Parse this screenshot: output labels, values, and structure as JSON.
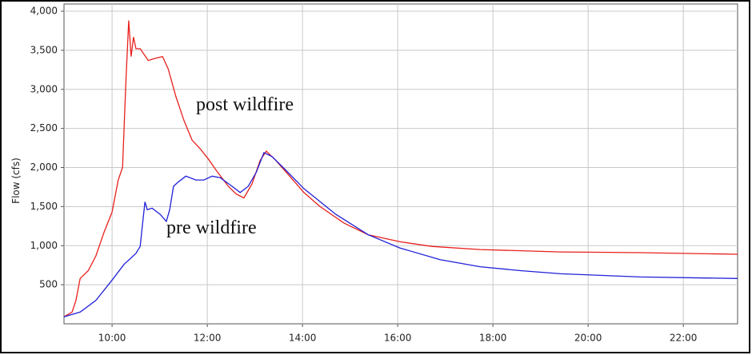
{
  "chart_data": {
    "type": "line",
    "y_label": "Flow (cfs)",
    "xlim": [
      8.99,
      23.14
    ],
    "xticks": [
      {
        "value": 10,
        "label": "10:00"
      },
      {
        "value": 12,
        "label": "12:00"
      },
      {
        "value": 14,
        "label": "14:00"
      },
      {
        "value": 16,
        "label": "16:00"
      },
      {
        "value": 18,
        "label": "18:00"
      },
      {
        "value": 20,
        "label": "20:00"
      },
      {
        "value": 22,
        "label": "22:00"
      }
    ],
    "ylim": [
      0,
      4000
    ],
    "yticks": [
      {
        "value": 500,
        "label": "500"
      },
      {
        "value": 1000,
        "label": "1,000"
      },
      {
        "value": 1500,
        "label": "1,500"
      },
      {
        "value": 2000,
        "label": "2,000"
      },
      {
        "value": 2500,
        "label": "2,500"
      },
      {
        "value": 3000,
        "label": "3,000"
      },
      {
        "value": 3500,
        "label": "3,500"
      },
      {
        "value": 4000,
        "label": "4,000"
      }
    ],
    "grid": true,
    "series": [
      {
        "name": "post wildfire",
        "color": "#e8201c",
        "x": [
          8.99,
          9.16,
          9.24,
          9.33,
          9.5,
          9.66,
          9.83,
          10.0,
          10.13,
          10.22,
          10.29,
          10.35,
          10.4,
          10.45,
          10.5,
          10.59,
          10.76,
          10.92,
          11.06,
          11.18,
          11.34,
          11.51,
          11.68,
          11.85,
          12.02,
          12.18,
          12.44,
          12.61,
          12.77,
          12.94,
          13.11,
          13.24,
          13.44,
          13.7,
          14.03,
          14.37,
          14.87,
          15.38,
          16.05,
          16.72,
          17.73,
          19.42,
          21.1,
          23.14
        ],
        "values": [
          90,
          150,
          300,
          580,
          680,
          870,
          1170,
          1430,
          1840,
          2000,
          3110,
          3880,
          3420,
          3670,
          3520,
          3520,
          3370,
          3400,
          3420,
          3260,
          2910,
          2600,
          2350,
          2240,
          2110,
          1970,
          1760,
          1660,
          1610,
          1790,
          2090,
          2210,
          2090,
          1910,
          1680,
          1500,
          1290,
          1140,
          1050,
          990,
          950,
          920,
          910,
          890
        ]
      },
      {
        "name": "pre wildfire",
        "color": "#2020d8",
        "x": [
          8.99,
          9.33,
          9.66,
          10.0,
          10.25,
          10.5,
          10.59,
          10.64,
          10.69,
          10.74,
          10.84,
          11.01,
          11.14,
          11.21,
          11.29,
          11.38,
          11.55,
          11.76,
          11.93,
          12.1,
          12.27,
          12.52,
          12.69,
          12.86,
          13.03,
          13.19,
          13.36,
          13.61,
          14.03,
          14.7,
          15.38,
          16.05,
          16.89,
          17.73,
          18.58,
          19.42,
          21.1,
          23.14
        ],
        "values": [
          90,
          150,
          300,
          560,
          760,
          900,
          990,
          1280,
          1560,
          1460,
          1480,
          1400,
          1310,
          1460,
          1760,
          1810,
          1890,
          1840,
          1840,
          1890,
          1870,
          1760,
          1680,
          1760,
          1940,
          2190,
          2140,
          1990,
          1730,
          1400,
          1140,
          970,
          820,
          730,
          680,
          640,
          600,
          580
        ]
      }
    ]
  }
}
